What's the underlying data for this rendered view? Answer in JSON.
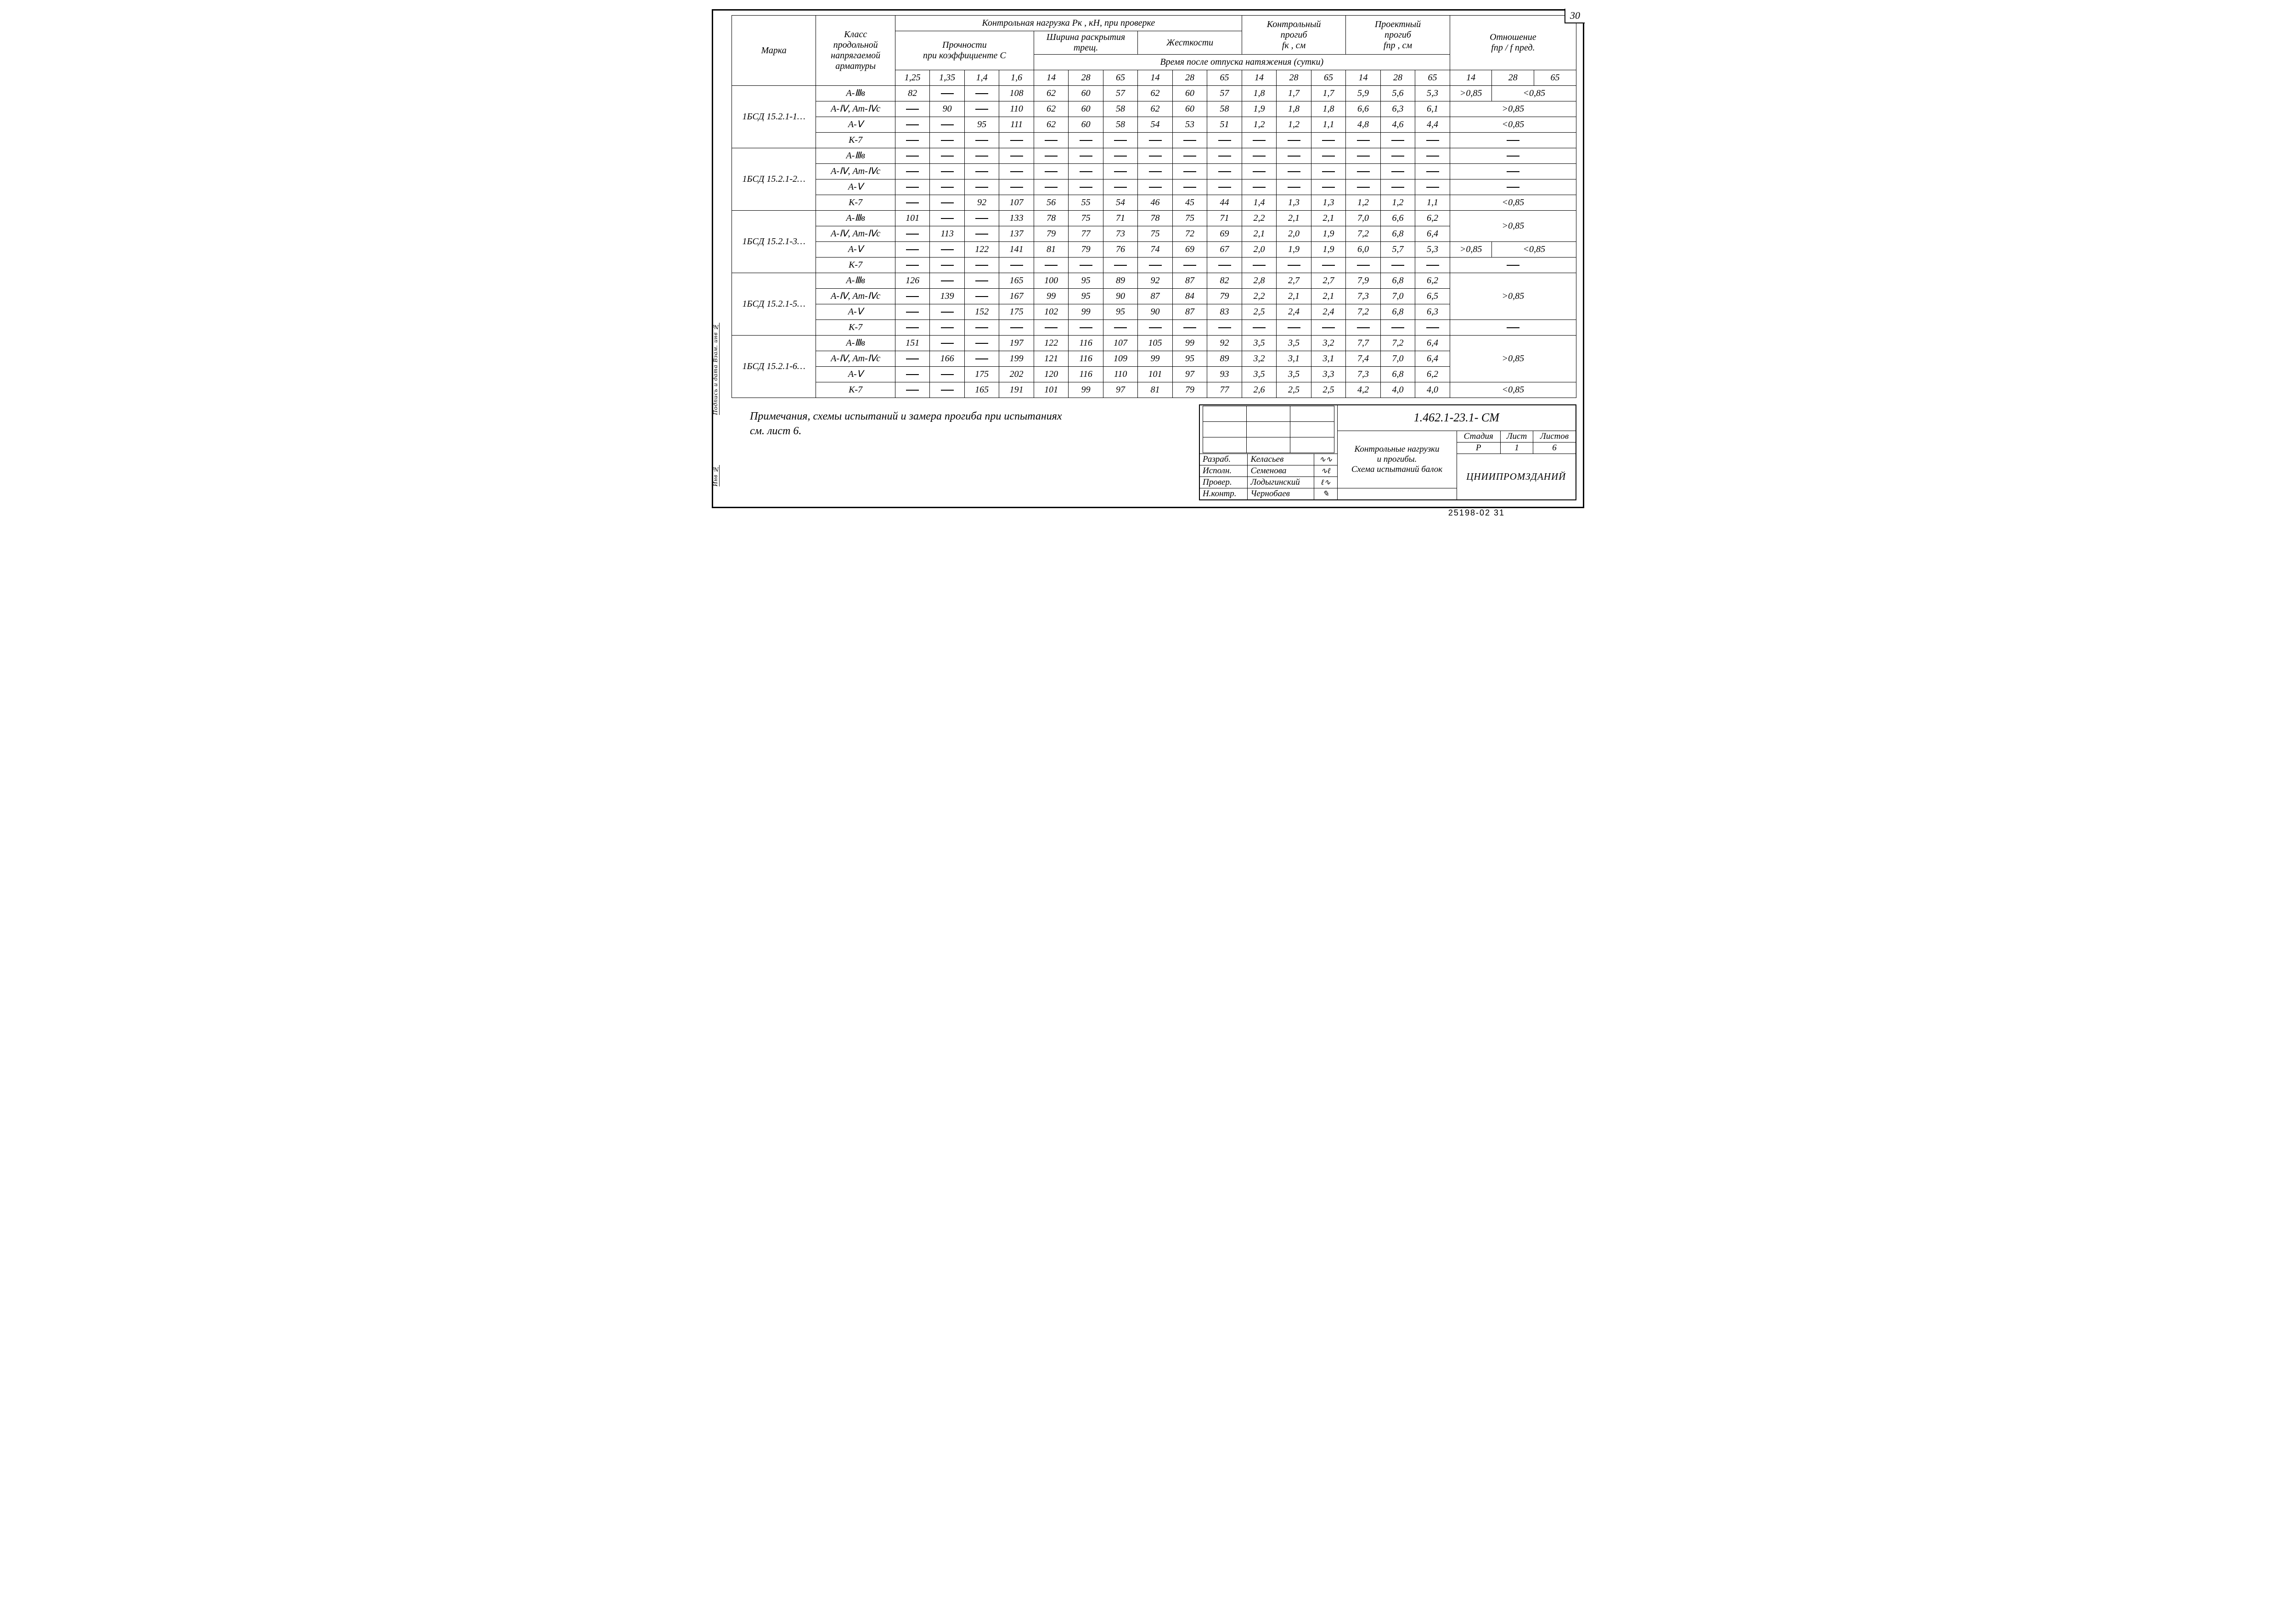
{
  "page_number": "30",
  "side_labels": [
    "Подпись и дата  Взам. инв №",
    "Инв №"
  ],
  "headers": {
    "marka": "Марка",
    "klass": "Класс\nпродольной\nнапрягаемой\nарматуры",
    "kontrol_load": "Контрольная  нагрузка Pк , кН,  при  проверке",
    "prochnost": "Прочности\nпри коэффициенте С",
    "crack": "Ширина раскрытия трещ.",
    "stiff": "Жесткости",
    "time_note": "Время   после   отпуска  натяжения  (сутки)",
    "kontrol_progib": "Контрольный\nпрогиб\nfк , см",
    "proekt_progib": "Проектный\nпрогиб\nfпр , см",
    "ratio": "Отношение\nfпр / f пред.",
    "c_vals": [
      "1,25",
      "1,35",
      "1,4",
      "1,6"
    ],
    "t_vals": [
      "14",
      "28",
      "65"
    ]
  },
  "groups": [
    {
      "marka": "1БСД 15.2.1-1…",
      "rows": [
        {
          "arm": "А-Ⅲв",
          "c": [
            "82",
            "—",
            "—",
            "108"
          ],
          "cr": [
            "62",
            "60",
            "57"
          ],
          "st": [
            "62",
            "60",
            "57"
          ],
          "fk": [
            "1,8",
            "1,7",
            "1,7"
          ],
          "fp": [
            "5,9",
            "5,6",
            "5,3"
          ],
          "ratio": [
            ">0,85",
            "<0,85"
          ],
          "rspan": 1
        },
        {
          "arm": "А-Ⅳ, Ат-Ⅳс",
          "c": [
            "—",
            "90",
            "—",
            "110"
          ],
          "cr": [
            "62",
            "60",
            "58"
          ],
          "st": [
            "62",
            "60",
            "58"
          ],
          "fk": [
            "1,9",
            "1,8",
            "1,8"
          ],
          "fp": [
            "6,6",
            "6,3",
            "6,1"
          ],
          "ratio": [
            ">0,85"
          ],
          "rspan": 1
        },
        {
          "arm": "А-Ⅴ",
          "c": [
            "—",
            "—",
            "95",
            "111"
          ],
          "cr": [
            "62",
            "60",
            "58"
          ],
          "st": [
            "54",
            "53",
            "51"
          ],
          "fk": [
            "1,2",
            "1,2",
            "1,1"
          ],
          "fp": [
            "4,8",
            "4,6",
            "4,4"
          ],
          "ratio": [
            "<0,85"
          ],
          "rspan": 1
        },
        {
          "arm": "К-7",
          "c": [
            "—",
            "—",
            "—",
            "—"
          ],
          "cr": [
            "—",
            "—",
            "—"
          ],
          "st": [
            "—",
            "—",
            "—"
          ],
          "fk": [
            "—",
            "—",
            "—"
          ],
          "fp": [
            "—",
            "—",
            "—"
          ],
          "ratio": [
            "—"
          ],
          "rspan": 1
        }
      ]
    },
    {
      "marka": "1БСД 15.2.1-2…",
      "rows": [
        {
          "arm": "А-Ⅲв",
          "c": [
            "—",
            "—",
            "—",
            "—"
          ],
          "cr": [
            "—",
            "—",
            "—"
          ],
          "st": [
            "—",
            "—",
            "—"
          ],
          "fk": [
            "—",
            "—",
            "—"
          ],
          "fp": [
            "—",
            "—",
            "—"
          ],
          "ratio": [
            "—"
          ],
          "rspan": 1
        },
        {
          "arm": "А-Ⅳ, Ат-Ⅳс",
          "c": [
            "—",
            "—",
            "—",
            "—"
          ],
          "cr": [
            "—",
            "—",
            "—"
          ],
          "st": [
            "—",
            "—",
            "—"
          ],
          "fk": [
            "—",
            "—",
            "—"
          ],
          "fp": [
            "—",
            "—",
            "—"
          ],
          "ratio": [
            "—"
          ],
          "rspan": 1
        },
        {
          "arm": "А-Ⅴ",
          "c": [
            "—",
            "—",
            "—",
            "—"
          ],
          "cr": [
            "—",
            "—",
            "—"
          ],
          "st": [
            "—",
            "—",
            "—"
          ],
          "fk": [
            "—",
            "—",
            "—"
          ],
          "fp": [
            "—",
            "—",
            "—"
          ],
          "ratio": [
            "—"
          ],
          "rspan": 1
        },
        {
          "arm": "К-7",
          "c": [
            "—",
            "—",
            "92",
            "107"
          ],
          "cr": [
            "56",
            "55",
            "54"
          ],
          "st": [
            "46",
            "45",
            "44"
          ],
          "fk": [
            "1,4",
            "1,3",
            "1,3"
          ],
          "fp": [
            "1,2",
            "1,2",
            "1,1"
          ],
          "ratio": [
            "<0,85"
          ],
          "rspan": 1
        }
      ]
    },
    {
      "marka": "1БСД 15.2.1-3…",
      "rows": [
        {
          "arm": "А-Ⅲв",
          "c": [
            "101",
            "—",
            "—",
            "133"
          ],
          "cr": [
            "78",
            "75",
            "71"
          ],
          "st": [
            "78",
            "75",
            "71"
          ],
          "fk": [
            "2,2",
            "2,1",
            "2,1"
          ],
          "fp": [
            "7,0",
            "6,6",
            "6,2"
          ],
          "ratio": [
            ">0,85"
          ],
          "rspan": 2
        },
        {
          "arm": "А-Ⅳ, Ат-Ⅳс",
          "c": [
            "—",
            "113",
            "—",
            "137"
          ],
          "cr": [
            "79",
            "77",
            "73"
          ],
          "st": [
            "75",
            "72",
            "69"
          ],
          "fk": [
            "2,1",
            "2,0",
            "1,9"
          ],
          "fp": [
            "7,2",
            "6,8",
            "6,4"
          ]
        },
        {
          "arm": "А-Ⅴ",
          "c": [
            "—",
            "—",
            "122",
            "141"
          ],
          "cr": [
            "81",
            "79",
            "76"
          ],
          "st": [
            "74",
            "69",
            "67"
          ],
          "fk": [
            "2,0",
            "1,9",
            "1,9"
          ],
          "fp": [
            "6,0",
            "5,7",
            "5,3"
          ],
          "ratio": [
            ">0,85",
            "<0,85"
          ],
          "rspan": 1
        },
        {
          "arm": "К-7",
          "c": [
            "—",
            "—",
            "—",
            "—"
          ],
          "cr": [
            "—",
            "—",
            "—"
          ],
          "st": [
            "—",
            "—",
            "—"
          ],
          "fk": [
            "—",
            "—",
            "—"
          ],
          "fp": [
            "—",
            "—",
            "—"
          ],
          "ratio": [
            "—"
          ],
          "rspan": 1
        }
      ]
    },
    {
      "marka": "1БСД 15.2.1-5…",
      "rows": [
        {
          "arm": "А-Ⅲв",
          "c": [
            "126",
            "—",
            "—",
            "165"
          ],
          "cr": [
            "100",
            "95",
            "89"
          ],
          "st": [
            "92",
            "87",
            "82"
          ],
          "fk": [
            "2,8",
            "2,7",
            "2,7"
          ],
          "fp": [
            "7,9",
            "6,8",
            "6,2"
          ],
          "ratio": [
            ">0,85"
          ],
          "rspan": 3
        },
        {
          "arm": "А-Ⅳ, Ат-Ⅳс",
          "c": [
            "—",
            "139",
            "—",
            "167"
          ],
          "cr": [
            "99",
            "95",
            "90"
          ],
          "st": [
            "87",
            "84",
            "79"
          ],
          "fk": [
            "2,2",
            "2,1",
            "2,1"
          ],
          "fp": [
            "7,3",
            "7,0",
            "6,5"
          ]
        },
        {
          "arm": "А-Ⅴ",
          "c": [
            "—",
            "—",
            "152",
            "175"
          ],
          "cr": [
            "102",
            "99",
            "95"
          ],
          "st": [
            "90",
            "87",
            "83"
          ],
          "fk": [
            "2,5",
            "2,4",
            "2,4"
          ],
          "fp": [
            "7,2",
            "6,8",
            "6,3"
          ]
        },
        {
          "arm": "К-7",
          "c": [
            "—",
            "—",
            "—",
            "—"
          ],
          "cr": [
            "—",
            "—",
            "—"
          ],
          "st": [
            "—",
            "—",
            "—"
          ],
          "fk": [
            "—",
            "—",
            "—"
          ],
          "fp": [
            "—",
            "—",
            "—"
          ],
          "ratio": [
            "—"
          ],
          "rspan": 1
        }
      ]
    },
    {
      "marka": "1БСД 15.2.1-6…",
      "rows": [
        {
          "arm": "А-Ⅲв",
          "c": [
            "151",
            "—",
            "—",
            "197"
          ],
          "cr": [
            "122",
            "116",
            "107"
          ],
          "st": [
            "105",
            "99",
            "92"
          ],
          "fk": [
            "3,5",
            "3,5",
            "3,2"
          ],
          "fp": [
            "7,7",
            "7,2",
            "6,4"
          ],
          "ratio": [
            ">0,85"
          ],
          "rspan": 3
        },
        {
          "arm": "А-Ⅳ, Ат-Ⅳс",
          "c": [
            "—",
            "166",
            "—",
            "199"
          ],
          "cr": [
            "121",
            "116",
            "109"
          ],
          "st": [
            "99",
            "95",
            "89"
          ],
          "fk": [
            "3,2",
            "3,1",
            "3,1"
          ],
          "fp": [
            "7,4",
            "7,0",
            "6,4"
          ]
        },
        {
          "arm": "А-Ⅴ",
          "c": [
            "—",
            "—",
            "175",
            "202"
          ],
          "cr": [
            "120",
            "116",
            "110"
          ],
          "st": [
            "101",
            "97",
            "93"
          ],
          "fk": [
            "3,5",
            "3,5",
            "3,3"
          ],
          "fp": [
            "7,3",
            "6,8",
            "6,2"
          ]
        },
        {
          "arm": "К-7",
          "c": [
            "—",
            "—",
            "165",
            "191"
          ],
          "cr": [
            "101",
            "99",
            "97"
          ],
          "st": [
            "81",
            "79",
            "77"
          ],
          "fk": [
            "2,6",
            "2,5",
            "2,5"
          ],
          "fp": [
            "4,2",
            "4,0",
            "4,0"
          ],
          "ratio": [
            "<0,85"
          ],
          "rspan": 1
        }
      ]
    }
  ],
  "note": "Примечания, схемы испытаний и замера прогиба при испытаниях\nсм. лист 6.",
  "title_block": {
    "drawing_no": "1.462.1-23.1- СМ",
    "title": "Контрольные  нагрузки\nи прогибы.\nСхема испытаний балок",
    "org": "ЦНИИПРОМЗДАНИЙ",
    "stage_hdr": [
      "Стадия",
      "Лист",
      "Листов"
    ],
    "stage_val": [
      "Р",
      "1",
      "6"
    ],
    "roles": [
      [
        "Разраб.",
        "Келасьев"
      ],
      [
        "Исполн.",
        "Семенова"
      ],
      [
        "Провер.",
        "Лодыгинский"
      ],
      [
        "Н.контр.",
        "Чернобаев"
      ]
    ]
  },
  "print_code": "25198-02  31"
}
